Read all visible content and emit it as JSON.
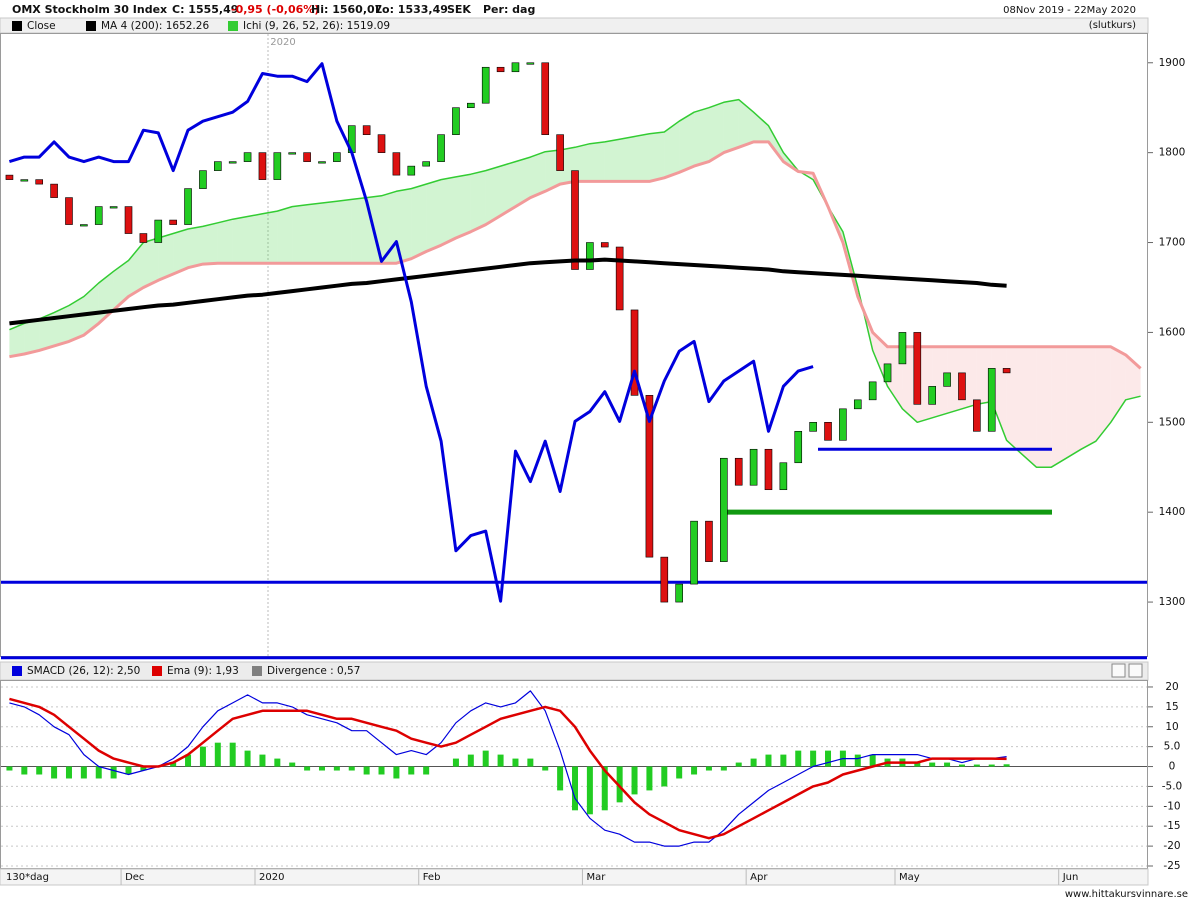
{
  "chart_data": [
    {
      "type": "candlestick",
      "title": "OMX Stockholm 30 Index",
      "quote": {
        "close": "C: 1555,49",
        "change": "-0,95 (-0,06%)",
        "high": "Hi: 1560,07",
        "low": "Lo: 1533,49",
        "currency": "SEK",
        "period": "Per: dag"
      },
      "date_range": "08Nov 2019 - 22May 2020",
      "price_basis": "(slutkurs)",
      "year_marker": "2020",
      "categories": [
        null,
        null,
        null,
        null,
        null,
        null,
        null,
        null,
        "Dec",
        null,
        null,
        null,
        null,
        null,
        null,
        null,
        null,
        "2020",
        null,
        null,
        null,
        null,
        null,
        null,
        null,
        null,
        null,
        null,
        "Feb",
        null,
        null,
        null,
        null,
        null,
        null,
        null,
        null,
        null,
        null,
        "Mar",
        null,
        null,
        null,
        null,
        null,
        null,
        null,
        null,
        null,
        null,
        "Apr",
        null,
        null,
        null,
        null,
        null,
        null,
        null,
        null,
        null,
        "May",
        null,
        null,
        null,
        null,
        null,
        null,
        null,
        null,
        null,
        null,
        "Jun",
        null,
        null,
        null,
        null,
        null
      ],
      "ylim": [
        1240,
        1932
      ],
      "yticks": [
        1300,
        1400,
        1500,
        1600,
        1700,
        1800,
        1900
      ],
      "grid": false,
      "series": [
        {
          "name": "Close",
          "type": "candlestick",
          "color": "#000000",
          "up_color": "#22cc22",
          "down_color": "#dd1111",
          "open": [
            1775,
            1770,
            1770,
            1765,
            1750,
            1720,
            1720,
            1740,
            1740,
            1710,
            1700,
            1725,
            1720,
            1760,
            1780,
            1790,
            1790,
            1800,
            1770,
            1800,
            1800,
            1790,
            1790,
            1800,
            1830,
            1820,
            1800,
            1775,
            1785,
            1790,
            1820,
            1850,
            1855,
            1895,
            1890,
            1900,
            1900,
            1820,
            1780,
            1670,
            1700,
            1695,
            1625,
            1530,
            1350,
            1300,
            1320,
            1390,
            1345,
            1460,
            1430,
            1470,
            1425,
            1455,
            1490,
            1500,
            1480,
            1515,
            1525,
            1545,
            1565,
            1600,
            1520,
            1540,
            1555,
            1525,
            1490,
            1560,
            null,
            null,
            null,
            null,
            null,
            null,
            null,
            null,
            null
          ],
          "values": [
            1770,
            1770,
            1765,
            1750,
            1720,
            1720,
            1740,
            1740,
            1710,
            1700,
            1725,
            1720,
            1760,
            1780,
            1790,
            1790,
            1800,
            1770,
            1800,
            1800,
            1790,
            1790,
            1800,
            1830,
            1820,
            1800,
            1775,
            1785,
            1790,
            1820,
            1850,
            1855,
            1895,
            1890,
            1900,
            1900,
            1820,
            1780,
            1670,
            1700,
            1695,
            1625,
            1530,
            1350,
            1300,
            1320,
            1390,
            1345,
            1460,
            1430,
            1470,
            1425,
            1455,
            1490,
            1500,
            1480,
            1515,
            1525,
            1545,
            1565,
            1600,
            1520,
            1540,
            1555,
            1525,
            1490,
            1560,
            1555,
            null,
            null,
            null,
            null,
            null,
            null,
            null,
            null,
            null
          ]
        },
        {
          "name": "MA 4 (200): 1652.26",
          "type": "line",
          "color": "#000000",
          "values": [
            1610,
            1612,
            1614,
            1616,
            1618,
            1620,
            1622,
            1624,
            1626,
            1628,
            1630,
            1631,
            1633,
            1635,
            1637,
            1639,
            1641,
            1642,
            1644,
            1646,
            1648,
            1650,
            1652,
            1654,
            1655,
            1657,
            1659,
            1661,
            1663,
            1665,
            1667,
            1669,
            1671,
            1673,
            1675,
            1677,
            1678,
            1679,
            1680,
            1680,
            1681,
            1680,
            1679,
            1678,
            1677,
            1676,
            1675,
            1674,
            1673,
            1672,
            1671,
            1670,
            1668,
            1667,
            1666,
            1665,
            1664,
            1663,
            1662,
            1661,
            1660,
            1659,
            1658,
            1657,
            1656,
            1655,
            1653,
            1652,
            null,
            null,
            null,
            null,
            null,
            null,
            null,
            null,
            null
          ]
        },
        {
          "type": "line",
          "color": "#0000dd",
          "values": [
            1790,
            1795,
            1795,
            1812,
            1795,
            1790,
            1795,
            1790,
            1790,
            1825,
            1822,
            1780,
            1825,
            1835,
            1840,
            1845,
            1857,
            1888,
            1885,
            1885,
            1879,
            1899,
            1835,
            1800,
            1746,
            1679,
            1701,
            1634,
            1540,
            1479,
            1357,
            1374,
            1379,
            1301,
            1468,
            1434,
            1479,
            1423,
            1501,
            1512,
            1534,
            1501,
            1557,
            1501,
            1546,
            1579,
            1590,
            1523,
            1546,
            1557,
            1568,
            1490,
            1540,
            1557,
            1562,
            null,
            null,
            null,
            null,
            null,
            null,
            null,
            null,
            null,
            null,
            null,
            null,
            null,
            null,
            null,
            null,
            null,
            null,
            null,
            null,
            null,
            null
          ]
        },
        {
          "name": "Ichi (9, 26, 52, 26): 1519.09",
          "type": "cloud",
          "color": "#33cc33",
          "span_b_color": "#f29a9a",
          "values": [
            1603,
            1610,
            1615,
            1622,
            1630,
            1640,
            1655,
            1668,
            1680,
            1700,
            1705,
            1710,
            1715,
            1718,
            1722,
            1726,
            1729,
            1732,
            1735,
            1740,
            1742,
            1744,
            1746,
            1748,
            1750,
            1752,
            1757,
            1760,
            1765,
            1770,
            1773,
            1776,
            1780,
            1785,
            1790,
            1795,
            1801,
            1803,
            1806,
            1810,
            1812,
            1815,
            1818,
            1821,
            1823,
            1835,
            1845,
            1850,
            1856,
            1859,
            1845,
            1830,
            1800,
            1780,
            1770,
            1740,
            1712,
            1650,
            1580,
            1540,
            1515,
            1500,
            1505,
            1510,
            1515,
            1520,
            1523,
            1480,
            1465,
            1450,
            1450,
            1460,
            1470,
            1479,
            1500,
            1525,
            1529
          ],
          "span_b": [
            1573,
            1576,
            1580,
            1585,
            1590,
            1597,
            1610,
            1625,
            1640,
            1650,
            1658,
            1665,
            1672,
            1676,
            1677,
            1677,
            1677,
            1677,
            1677,
            1677,
            1677,
            1677,
            1677,
            1677,
            1677,
            1677,
            1677,
            1682,
            1690,
            1697,
            1705,
            1712,
            1720,
            1730,
            1740,
            1750,
            1757,
            1765,
            1768,
            1768,
            1768,
            1768,
            1768,
            1768,
            1772,
            1778,
            1785,
            1790,
            1800,
            1806,
            1812,
            1812,
            1790,
            1779,
            1777,
            1740,
            1700,
            1640,
            1600,
            1584,
            1584,
            1584,
            1584,
            1584,
            1584,
            1584,
            1584,
            1584,
            1584,
            1584,
            1584,
            1584,
            1584,
            1584,
            1584,
            1575,
            1560
          ]
        }
      ],
      "reference_lines": [
        {
          "value": 1322,
          "color": "#0000dd"
        },
        {
          "value": 1238,
          "color": "#0000dd"
        },
        {
          "value": 1470,
          "color": "#0000dd"
        },
        {
          "value": 1400,
          "color": "#119911"
        }
      ],
      "x_period": "130*dag"
    },
    {
      "type": "macd",
      "ylim": [
        -25.5,
        21.5
      ],
      "yticks": [
        20,
        15,
        10,
        {
          "value": 5,
          "label": "5.0"
        },
        0,
        {
          "value": -5,
          "label": "-5.0"
        },
        -10,
        -15,
        -20,
        -25
      ],
      "grid": true,
      "series": [
        {
          "name": "SMACD (26, 12): 2,50",
          "type": "line",
          "color": "#0000dd",
          "values": [
            16,
            15,
            13,
            10,
            8,
            3,
            0,
            -1,
            -2,
            -1,
            0,
            2,
            5,
            10,
            14,
            16,
            18,
            16,
            16,
            15,
            13,
            12,
            11,
            9,
            9,
            6,
            3,
            4,
            3,
            6,
            11,
            14,
            16,
            15,
            16,
            19,
            14,
            4,
            -8,
            -13,
            -16,
            -17,
            -19,
            -19,
            -20,
            -20,
            -19,
            -19,
            -16,
            -12,
            -9,
            -6,
            -4,
            -2,
            0,
            1,
            2,
            2,
            3,
            3,
            3,
            3,
            2,
            2,
            1,
            2,
            2,
            2.5,
            null,
            null,
            null,
            null,
            null,
            null,
            null,
            null,
            null
          ]
        },
        {
          "name": "Ema (9): 1,93",
          "type": "line",
          "color": "#dd0000",
          "values": [
            17,
            16,
            15,
            13,
            10,
            7,
            4,
            2,
            1,
            0,
            0,
            1,
            3,
            6,
            9,
            12,
            13,
            14,
            14,
            14,
            14,
            13,
            12,
            12,
            11,
            10,
            9,
            7,
            6,
            5,
            6,
            8,
            10,
            12,
            13,
            14,
            15,
            14,
            10,
            4,
            -1,
            -5,
            -9,
            -12,
            -14,
            -16,
            -17,
            -18,
            -17,
            -15,
            -13,
            -11,
            -9,
            -7,
            -5,
            -4,
            -2,
            -1,
            0,
            1,
            1,
            1,
            2,
            2,
            2,
            2,
            2,
            1.93,
            null,
            null,
            null,
            null,
            null,
            null,
            null,
            null,
            null
          ]
        },
        {
          "name": "Divergence : 0,57",
          "type": "bar",
          "color": "#808080",
          "bar_color": "#22cc22",
          "values": [
            -1,
            -2,
            -2,
            -3,
            -3,
            -3,
            -3,
            -3,
            -2,
            -1,
            0,
            1,
            3,
            5,
            6,
            6,
            4,
            3,
            2,
            1,
            -1,
            -1,
            -1,
            -1,
            -2,
            -2,
            -3,
            -2,
            -2,
            0,
            2,
            3,
            4,
            3,
            2,
            2,
            -1,
            -6,
            -11,
            -12,
            -11,
            -9,
            -7,
            -6,
            -5,
            -3,
            -2,
            -1,
            -1,
            1,
            2,
            3,
            3,
            4,
            4,
            4,
            4,
            3,
            3,
            2,
            2,
            1,
            1,
            1,
            0.5,
            0.5,
            0.5,
            0.57,
            null,
            null,
            null,
            null,
            null,
            null,
            null,
            null,
            null
          ]
        }
      ],
      "source": "www.hittakursvinnare.se"
    }
  ]
}
